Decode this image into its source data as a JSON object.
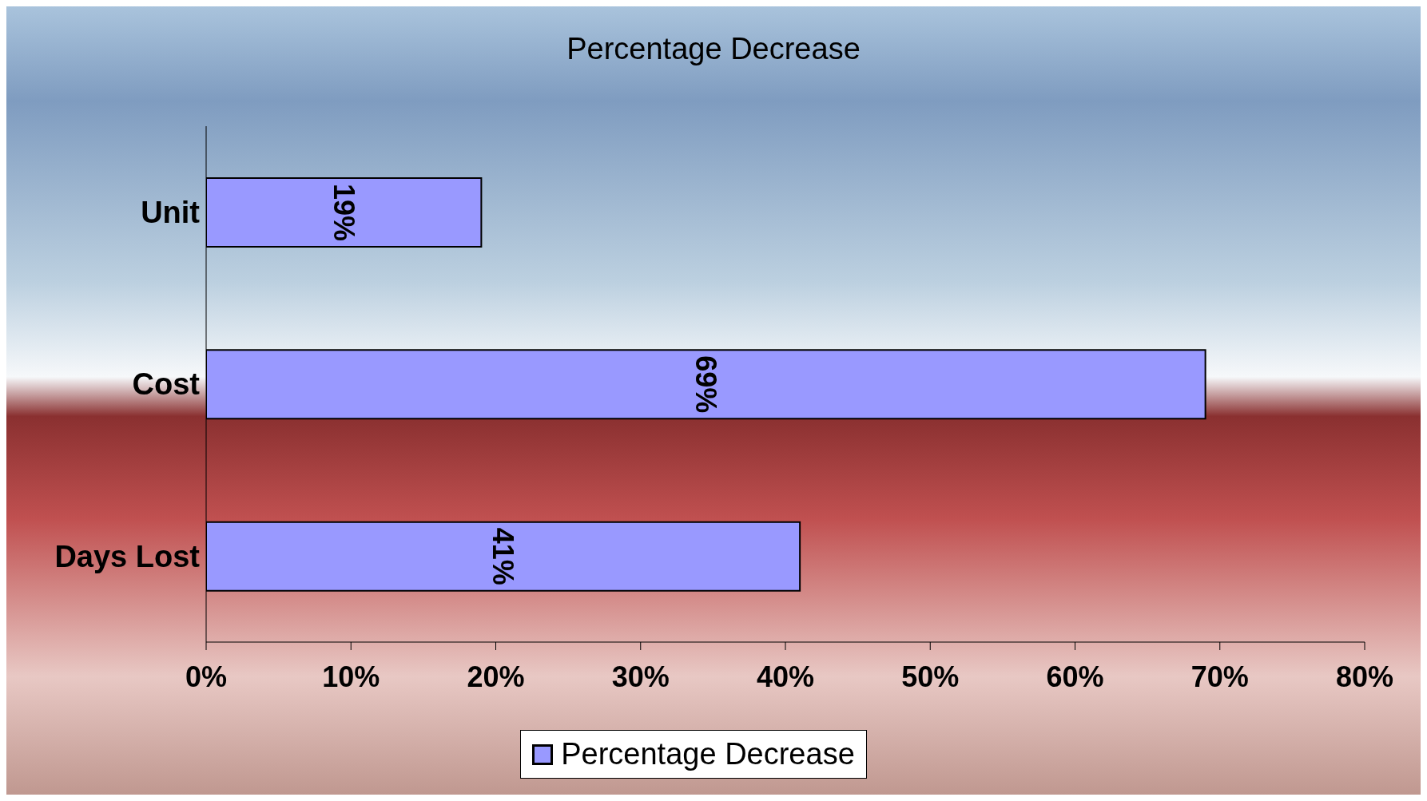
{
  "chart_data": {
    "type": "bar",
    "orientation": "horizontal",
    "title": "Percentage Decrease",
    "categories": [
      "Unit",
      "Cost",
      "Days Lost"
    ],
    "series": [
      {
        "name": "Percentage Decrease",
        "color": "#9999ff",
        "values": [
          19,
          69,
          41
        ],
        "value_labels": [
          "19%",
          "69%",
          "41%"
        ]
      }
    ],
    "xlim": [
      0,
      80
    ],
    "xticks": [
      {
        "value": 0,
        "label": "0%"
      },
      {
        "value": 10,
        "label": "10%"
      },
      {
        "value": 20,
        "label": "20%"
      },
      {
        "value": 30,
        "label": "30%"
      },
      {
        "value": 40,
        "label": "40%"
      },
      {
        "value": 50,
        "label": "50%"
      },
      {
        "value": 60,
        "label": "60%"
      },
      {
        "value": 70,
        "label": "70%"
      },
      {
        "value": 80,
        "label": "80%"
      }
    ],
    "grid": false,
    "legend": "bottom"
  }
}
